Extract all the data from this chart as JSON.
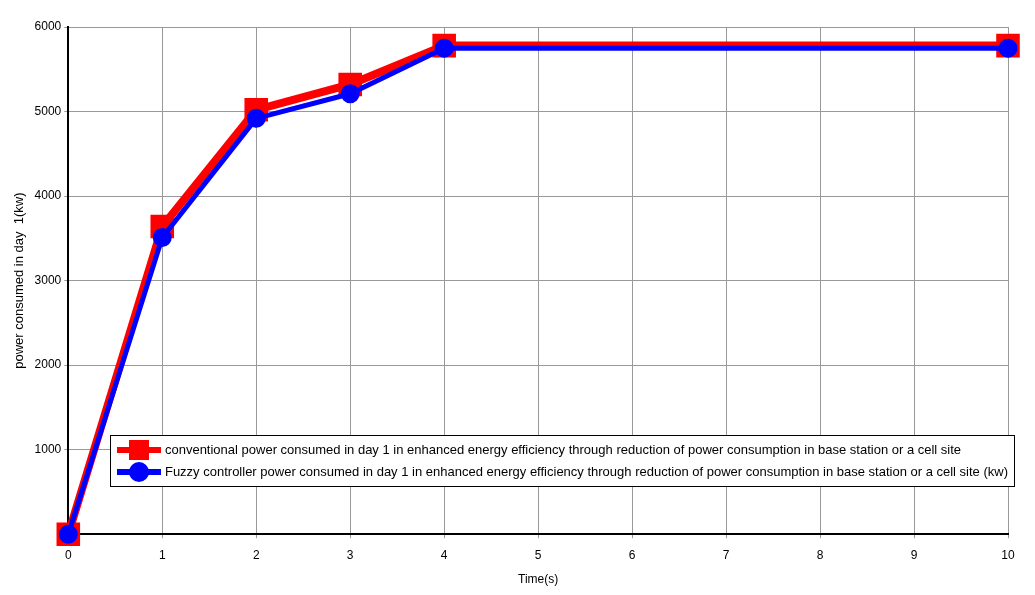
{
  "chart_data": {
    "type": "line",
    "xlabel": "Time(s)",
    "ylabel": "power consumed in day  1(kw)",
    "x": [
      0,
      1,
      2,
      3,
      4,
      10
    ],
    "series": [
      {
        "name": "conventional power consumed in day 1 in enhanced energy efficiency through reduction of power consumption in base station or a cell site",
        "color": "#ff0000",
        "marker": "square",
        "values": [
          0,
          3640,
          5020,
          5320,
          5780,
          5780
        ]
      },
      {
        "name": "Fuzzy controller power consumed in day 1 in enhanced energy efficiency through reduction of power consumption in base station or a cell site (kw)",
        "color": "#0000ff",
        "marker": "circle",
        "values": [
          0,
          3510,
          4920,
          5210,
          5750,
          5750
        ]
      }
    ],
    "xlim": [
      0,
      10
    ],
    "xticks": [
      0,
      1,
      2,
      3,
      4,
      5,
      6,
      7,
      8,
      9,
      10
    ],
    "ylim": [
      0,
      6000
    ],
    "yticks": [
      {
        "value": 0,
        "label": null
      },
      1000,
      2000,
      3000,
      4000,
      5000,
      6000
    ],
    "grid": true,
    "legend": "bottom right",
    "line_style": "solid"
  }
}
